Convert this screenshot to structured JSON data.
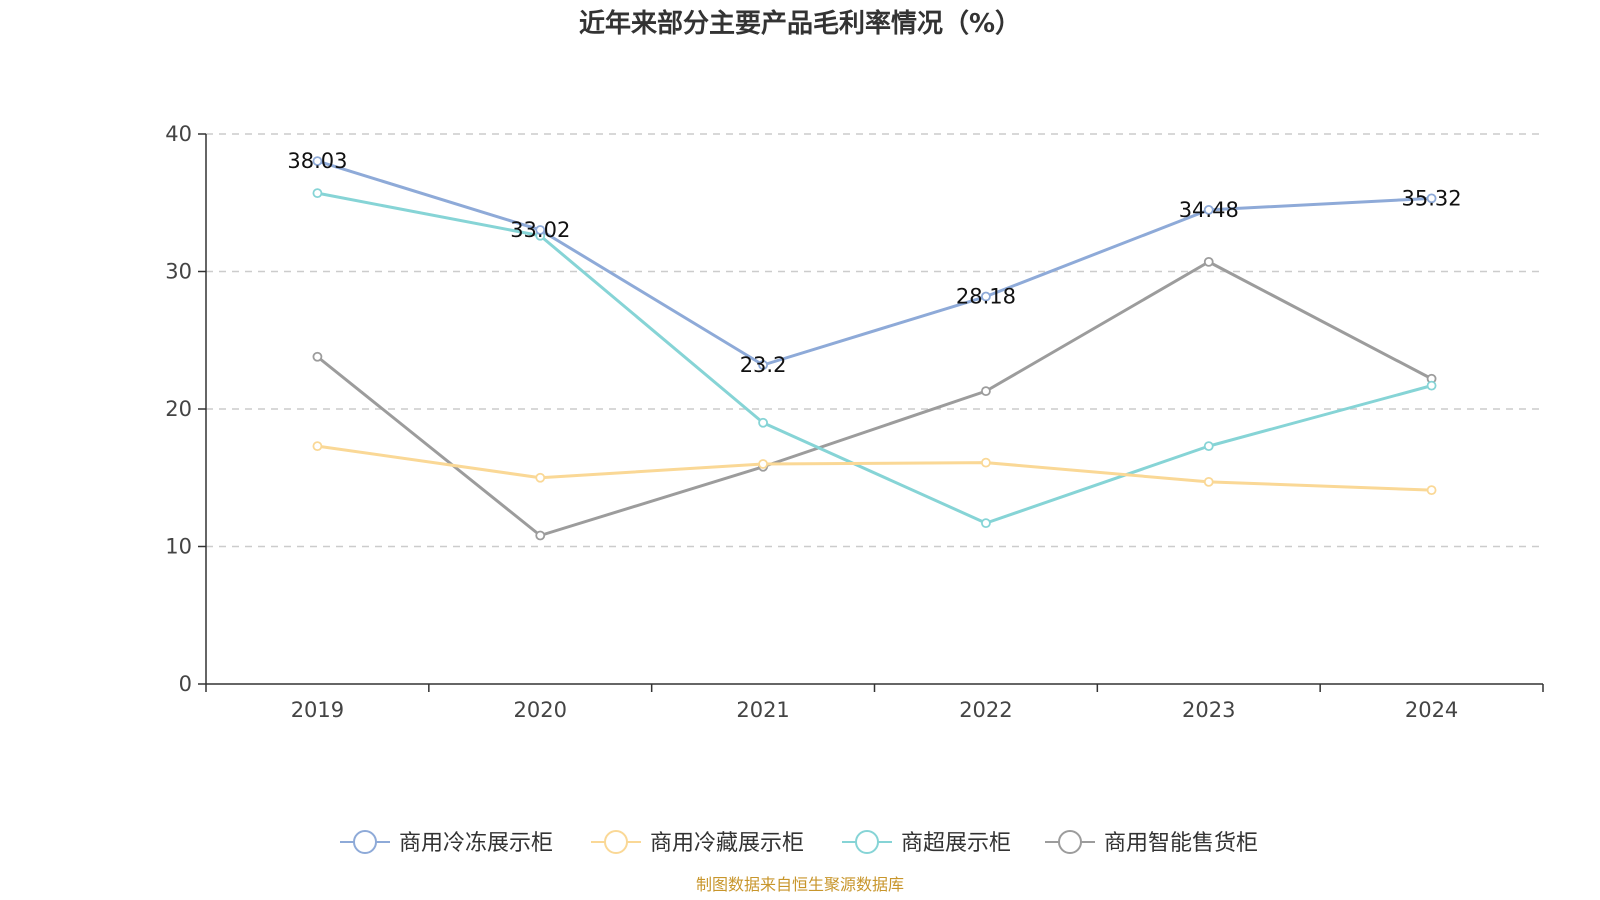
{
  "chart_data": {
    "type": "line",
    "title": "近年来部分主要产品毛利率情况（%）",
    "x": [
      "2019",
      "2020",
      "2021",
      "2022",
      "2023",
      "2024"
    ],
    "yticks": [
      "0",
      "10",
      "20",
      "30",
      "40"
    ],
    "ylim": [
      0,
      40
    ],
    "grid": true,
    "legend_position": "bottom",
    "series": [
      {
        "name": "商用冷冻展示柜",
        "color": "#8eaad8",
        "values": [
          38.03,
          33.02,
          23.2,
          28.18,
          34.48,
          35.32
        ],
        "labels": [
          "38.03",
          "33.02",
          "23.2",
          "28.18",
          "34.48",
          "35.32"
        ]
      },
      {
        "name": "商用冷藏展示柜",
        "color": "#fad896",
        "values": [
          17.3,
          15.0,
          16.0,
          16.1,
          14.7,
          14.1
        ]
      },
      {
        "name": "商超展示柜",
        "color": "#86d4d6",
        "values": [
          35.7,
          32.6,
          19.0,
          11.7,
          17.3,
          21.7
        ]
      },
      {
        "name": "商用智能售货柜",
        "color": "#9c9c9c",
        "values": [
          23.8,
          10.8,
          15.8,
          21.3,
          30.7,
          22.2
        ]
      }
    ]
  },
  "footer": {
    "source": "制图数据来自恒生聚源数据库"
  }
}
